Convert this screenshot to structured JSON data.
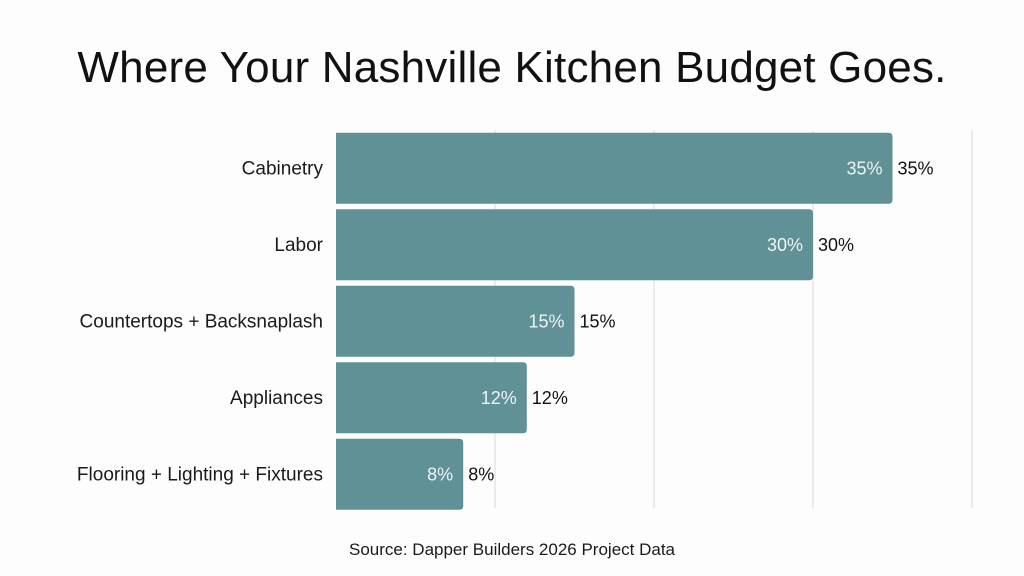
{
  "title": "Where Your Nashville Kitchen Budget Goes.",
  "source": "Source: Dapper Builders 2026 Project Data",
  "colors": {
    "bar": "#5f9197",
    "grid": "#d9d9d9",
    "background": "#fdfdfd"
  },
  "chart_data": {
    "type": "bar",
    "orientation": "horizontal",
    "title": "Where Your Nashville Kitchen Budget Goes.",
    "categories": [
      "Cabinetry",
      "Labor",
      "Countertops + Backsnaplash",
      "Appliances",
      "Flooring + Lighting + Fixtures"
    ],
    "values": [
      35,
      30,
      15,
      12,
      8
    ],
    "value_labels": [
      "35%",
      "30%",
      "15%",
      "12%",
      "8%"
    ],
    "xlim": [
      0,
      40
    ],
    "grid": true,
    "xlabel": "",
    "ylabel": ""
  }
}
